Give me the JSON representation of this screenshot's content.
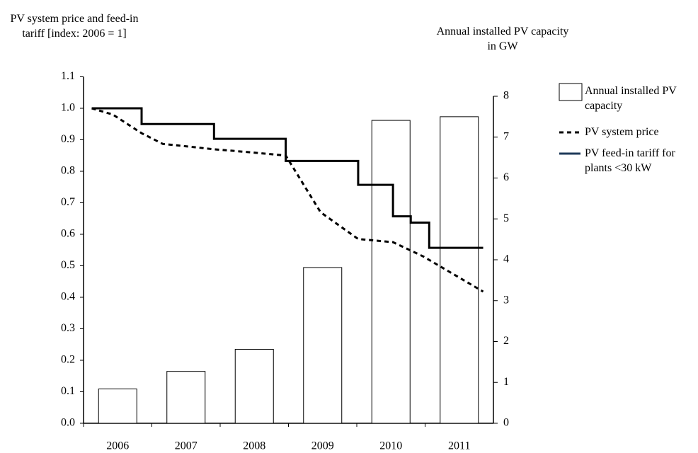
{
  "chart_data": {
    "type": "bar_line",
    "y_label": "PV system price and feed-in tariff [index: 2006 = 1]",
    "y2_label": "Annual installed PV capacity in GW",
    "categories": [
      "2006",
      "2007",
      "2008",
      "2009",
      "2010",
      "2011"
    ],
    "xlim": [
      2006,
      2012
    ],
    "ylim": [
      0,
      1.1
    ],
    "yticks": [
      {
        "value": 0,
        "label": "0.0"
      },
      0.1,
      0.2,
      0.3,
      0.4,
      0.5,
      0.6,
      0.7,
      0.8,
      0.9,
      {
        "value": 1,
        "label": "1.0"
      },
      1.1
    ],
    "y2lim": [
      0,
      8
    ],
    "y2ticks": [
      0,
      1,
      2,
      3,
      4,
      5,
      6,
      7,
      8
    ],
    "series": [
      {
        "name": "Annual installed PV capacity",
        "type": "bar",
        "axis": "y2",
        "color": "#ffffff",
        "values": [
          0.84,
          1.27,
          1.81,
          3.81,
          7.41,
          7.5
        ]
      },
      {
        "name": "PV system price",
        "type": "dashed",
        "color": "#000000",
        "x": [
          2006.12,
          2006.43,
          2006.85,
          2007.16,
          2007.91,
          2008.46,
          2008.96,
          2009.47,
          2010.02,
          2010.53,
          2010.97,
          2011.85
        ],
        "values": [
          1.0,
          0.98,
          0.921,
          0.887,
          0.87,
          0.86,
          0.85,
          0.67,
          0.585,
          0.575,
          0.53,
          0.418
        ]
      },
      {
        "name": "PV feed-in tariff for plants <30 kW",
        "type": "step",
        "color": "#000000",
        "x": [
          2006.12,
          2006.85,
          2007.91,
          2008.96,
          2010.02,
          2010.53,
          2010.79,
          2011.06,
          2011.85
        ],
        "values": [
          1.0,
          0.95,
          0.903,
          0.833,
          0.757,
          0.657,
          0.637,
          0.557,
          0.557
        ]
      }
    ]
  }
}
